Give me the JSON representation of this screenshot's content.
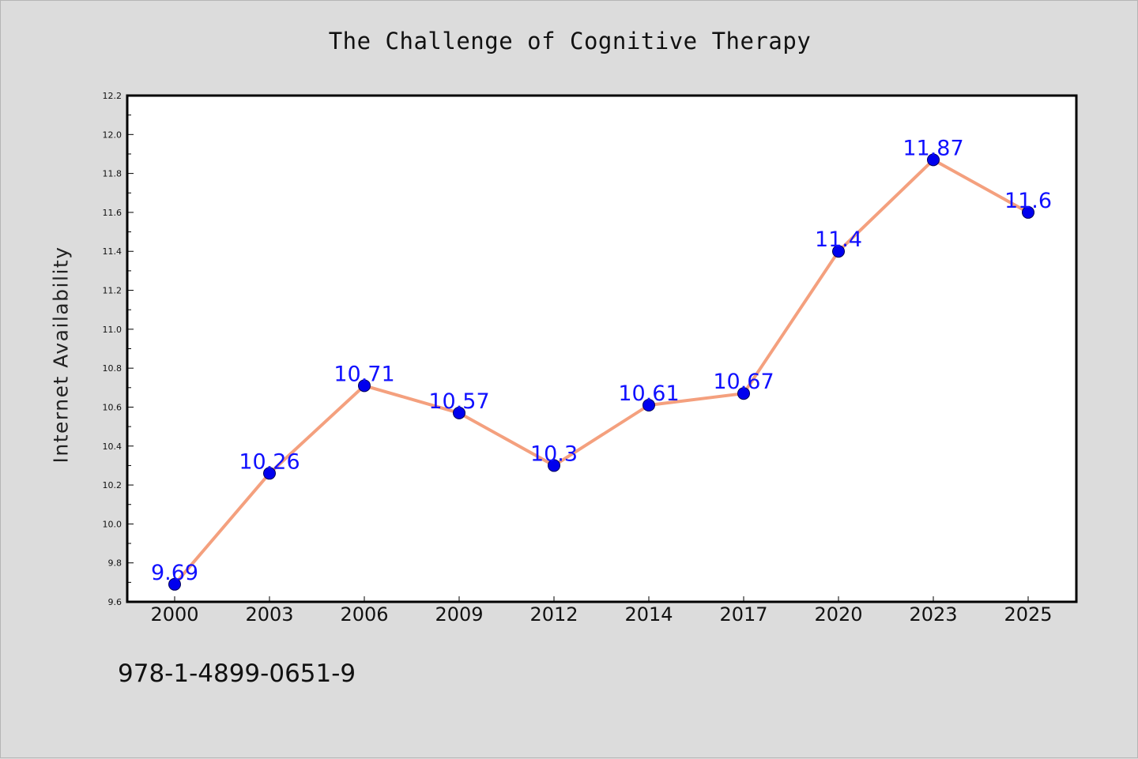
{
  "colors": {
    "background": "#dcdcdc",
    "plot_background": "#ffffff",
    "line": "#f4a07e",
    "marker": "#0000ee",
    "data_label": "#1010ff"
  },
  "chart_data": {
    "type": "line",
    "title": "The Challenge of Cognitive Therapy",
    "xlabel": "",
    "ylabel": "Internet Availability",
    "categories": [
      "2000",
      "2003",
      "2006",
      "2009",
      "2012",
      "2014",
      "2017",
      "2020",
      "2023",
      "2025"
    ],
    "series": [
      {
        "values": [
          9.69,
          10.26,
          10.71,
          10.57,
          10.3,
          10.61,
          10.67,
          11.4,
          11.87,
          11.6
        ],
        "labels": [
          "9.69",
          "10.26",
          "10.71",
          "10.57",
          "10.3",
          "10.61",
          "10.67",
          "11.4",
          "11.87",
          "11.6"
        ]
      }
    ],
    "ylim": [
      9.6,
      12.2
    ],
    "yticks": [
      "9.6",
      "9.8",
      "10.0",
      "10.2",
      "10.4",
      "10.6",
      "10.8",
      "11.0",
      "11.2",
      "11.4",
      "11.6",
      "11.8",
      "12.0",
      "12.2"
    ],
    "grid": false,
    "legend": "none"
  },
  "footer": {
    "code": "978-1-4899-0651-9"
  }
}
